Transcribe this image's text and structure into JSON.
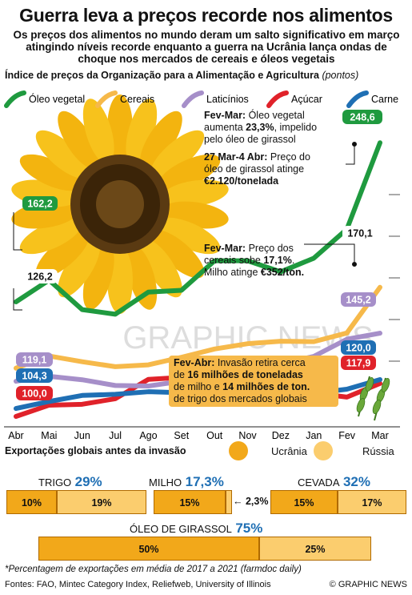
{
  "title": "Guerra leva a preços recorde nos alimentos",
  "subtitle": "Os preços dos alimentos no mundo deram um salto significativo em março atingindo níveis recorde enquanto a guerra na Ucrânia lança ondas de choque nos mercados de cereais e óleos vegetais",
  "chart_heading": "Índice de preços da Organização para a Alimentação e Agricultura",
  "chart_unit": "(pontos)",
  "colors": {
    "oleo": "#1f9a3f",
    "cereais": "#f6b94a",
    "laticinios": "#a68fc9",
    "acucar": "#e0222a",
    "carne": "#1f6fb4",
    "ukraine": "#f2a81a",
    "russia": "#fbcd6e"
  },
  "chart_data": {
    "type": "line",
    "x": [
      "Abr",
      "Mai",
      "Jun",
      "Jul",
      "Ago",
      "Set",
      "Out",
      "Nov",
      "Dez",
      "Jan",
      "Fev",
      "Mar"
    ],
    "series": [
      {
        "name": "Óleo vegetal",
        "color": "#1f9a3f",
        "values": [
          162.2,
          174.0,
          158.0,
          155.5,
          167.5,
          168.5,
          184.5,
          184.5,
          178.5,
          185.9,
          201.7,
          248.6
        ]
      },
      {
        "name": "Cereais",
        "color": "#f6b94a",
        "values": [
          126.2,
          132.8,
          129.7,
          127.0,
          128.0,
          132.1,
          136.6,
          139.5,
          140.8,
          140.6,
          145.3,
          170.1
        ]
      },
      {
        "name": "Laticínios",
        "color": "#a68fc9",
        "values": [
          119.1,
          121.8,
          119.9,
          116.8,
          116.5,
          119.1,
          122.7,
          125.5,
          128.6,
          132.6,
          141.9,
          145.2
        ]
      },
      {
        "name": "Açúcar",
        "color": "#e0222a",
        "values": [
          100.0,
          106.1,
          106.6,
          109.6,
          120.1,
          121.2,
          119.1,
          120.4,
          116.4,
          112.7,
          110.5,
          117.9
        ]
      },
      {
        "name": "Carne",
        "color": "#1f6fb4",
        "values": [
          104.3,
          108.1,
          111.4,
          112.0,
          113.4,
          112.9,
          112.5,
          111.8,
          111.3,
          112.6,
          114.8,
          120.0
        ]
      }
    ],
    "start_labels": {
      "oleo": "162,2",
      "cereais": "126,2",
      "laticinios": "119,1",
      "carne": "104,3",
      "acucar": "100,0"
    },
    "end_labels": {
      "oleo": "248,6",
      "cereais": "170,1",
      "laticinios": "145,2",
      "carne": "120,0",
      "acucar": "117,9"
    }
  },
  "legend": [
    "Óleo vegetal",
    "Cereais",
    "Laticínios",
    "Açúcar",
    "Carne"
  ],
  "notes": {
    "n1_a": "Fev-Mar:",
    "n1_b": " Óleo vegetal",
    "n1_c": "aumenta ",
    "n1_d": "23,3%",
    "n1_e": ", impelido",
    "n1_f": "pelo óleo de girassol",
    "n2_a": "27 Mar-4 Abr:",
    "n2_b": " Preço do",
    "n2_c": "óleo de girassol atinge",
    "n2_d": "€2.120/tonelada",
    "n3_a": "Fev-Mar:",
    "n3_b": " Preço dos",
    "n3_c": "cereais sobe ",
    "n3_d": "17,1%",
    "n3_e": ".",
    "n3_f": "Milho atinge ",
    "n3_g": "€352/ton.",
    "n4_a": "Fev-Abr:",
    "n4_b": " Invasão retira cerca",
    "n4_c": "de ",
    "n4_d": "16 milhões de toneladas",
    "n4_e": "de milho e ",
    "n4_f": "14 milhões de ton.",
    "n4_g": "de trigo dos mercados globais"
  },
  "watermark": "GRAPHIC NEWS",
  "exports": {
    "heading": "Exportações globais antes da invasão",
    "legend_ukraine": "Ucrânia",
    "legend_russia": "Rússia",
    "trigo": {
      "label": "TRIGO",
      "total": "29%",
      "ukr": "10%",
      "rus": "19%"
    },
    "milho": {
      "label": "MILHO",
      "total": "17,3%",
      "ukr": "15%",
      "rus": "2,3%"
    },
    "cevada": {
      "label": "CEVADA",
      "total": "32%",
      "ukr": "15%",
      "rus": "17%"
    },
    "girassol": {
      "label": "ÓLEO DE GIRASSOL",
      "total": "75%",
      "ukr": "50%",
      "rus": "25%"
    }
  },
  "footnote": "*Percentagem de exportações em média de 2017 a 2021 (farmdoc daily)",
  "sources": "Fontes: FAO, Mintec Category Index, Reliefweb, University of Illinois",
  "credit": "© GRAPHIC NEWS"
}
